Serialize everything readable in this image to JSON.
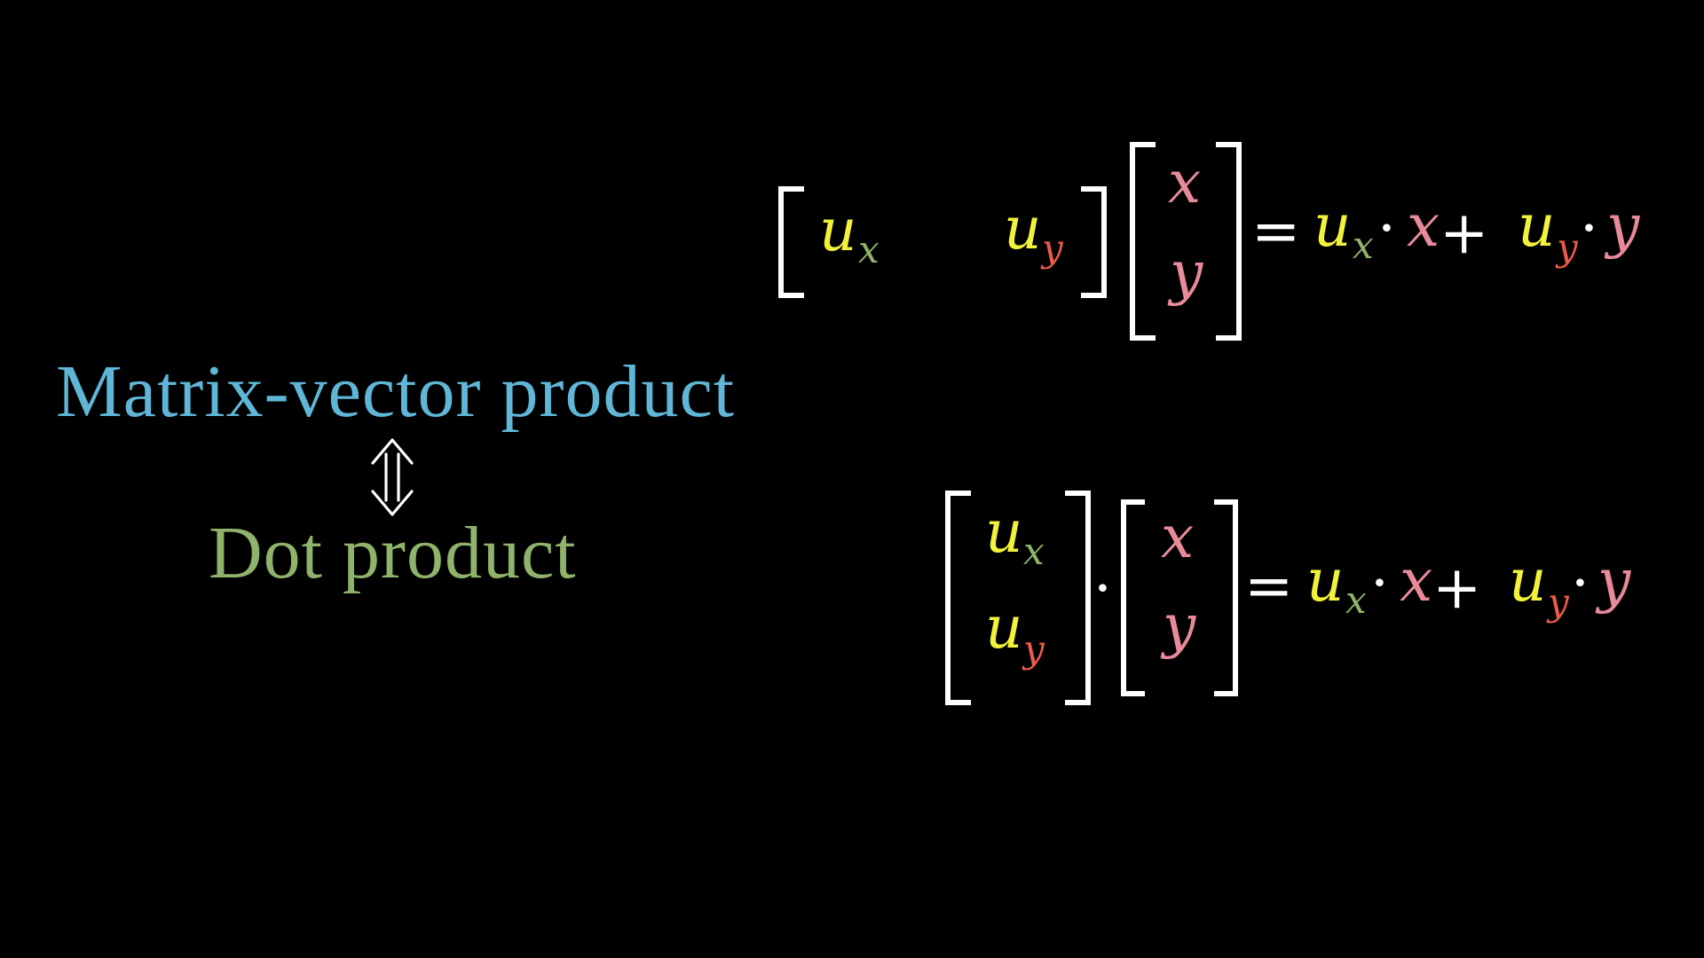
{
  "labels": {
    "matrix_vector": "Matrix-vector product",
    "dot": "Dot product"
  },
  "equivalence_symbol": "⇕",
  "symbols": {
    "u": "u",
    "sub_x": "x",
    "sub_y": "y",
    "x": "x",
    "y": "y",
    "equals": "=",
    "plus": "+",
    "dot": "·"
  },
  "colors": {
    "background": "#000000",
    "matrix_label": "#5fb6d6",
    "dot_label": "#8fb36a",
    "u": "#f2f23a",
    "sub_x": "#8fb36a",
    "sub_y": "#ec5a4a",
    "xy": "#e88a9a",
    "white": "#ffffff"
  }
}
